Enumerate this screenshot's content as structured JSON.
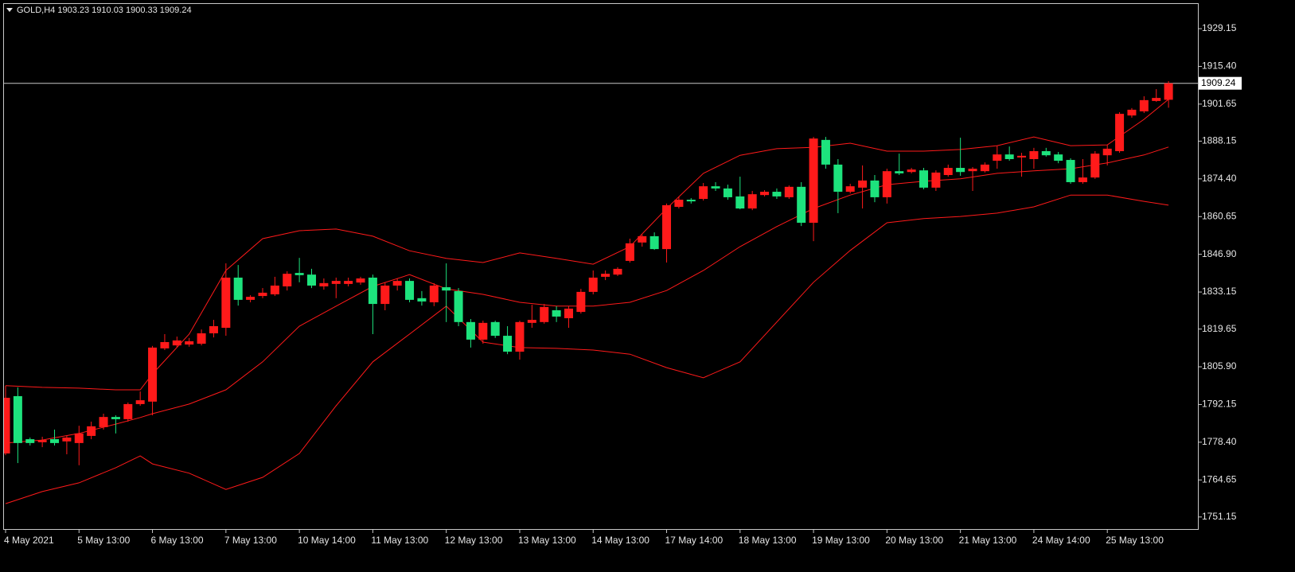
{
  "chart_data": {
    "type": "candlestick",
    "title": "GOLD,H4  1903.23 1910.03 1900.33 1909.24",
    "categories": [
      "4 May 2021",
      null,
      null,
      null,
      null,
      null,
      "5 May 13:00",
      null,
      null,
      null,
      null,
      null,
      "6 May 13:00",
      null,
      null,
      null,
      null,
      null,
      "7 May 13:00",
      null,
      null,
      null,
      null,
      null,
      "10 May 14:00",
      null,
      null,
      null,
      null,
      null,
      "11 May 13:00",
      null,
      null,
      null,
      null,
      null,
      "12 May 13:00",
      null,
      null,
      null,
      null,
      null,
      "13 May 13:00",
      null,
      null,
      null,
      null,
      null,
      "14 May 13:00",
      null,
      null,
      null,
      null,
      null,
      "17 May 14:00",
      null,
      null,
      null,
      null,
      null,
      "18 May 13:00",
      null,
      null,
      null,
      null,
      null,
      "19 May 13:00",
      null,
      null,
      null,
      null,
      null,
      "20 May 13:00",
      null,
      null,
      null,
      null,
      null,
      "21 May 13:00",
      null,
      null,
      null,
      null,
      null,
      "24 May 14:00",
      null,
      null,
      null,
      null,
      null,
      "25 May 13:00",
      null,
      null,
      null,
      null,
      null
    ],
    "open": [
      1774.3,
      1795.2,
      1779.5,
      1778.4,
      1779.5,
      1778.7,
      1778.1,
      1780.7,
      1783.9,
      1787.6,
      1786.8,
      1792.3,
      1793.2,
      1812.6,
      1813.7,
      1814.0,
      1814.3,
      1818.1,
      1820.1,
      1838.4,
      1830.3,
      1831.7,
      1832.3,
      1835.2,
      1840.1,
      1839.5,
      1835.2,
      1836.1,
      1836.1,
      1836.6,
      1838.4,
      1828.8,
      1835.5,
      1837.2,
      1830.9,
      1829.4,
      1834.9,
      1833.5,
      1822.2,
      1815.8,
      1822.2,
      1817.2,
      1811.4,
      1821.9,
      1822.2,
      1826.5,
      1823.6,
      1825.9,
      1833.2,
      1838.7,
      1839.5,
      1844.5,
      1851.2,
      1853.5,
      1848.8,
      1864.2,
      1866.8,
      1867.1,
      1871.7,
      1870.9,
      1868.0,
      1863.6,
      1868.5,
      1869.7,
      1867.7,
      1871.5,
      1858.4,
      1888.6,
      1879.6,
      1869.7,
      1871.2,
      1873.8,
      1867.7,
      1877.2,
      1876.9,
      1877.5,
      1871.2,
      1875.8,
      1878.4,
      1877.2,
      1877.2,
      1881.0,
      1883.3,
      1882.2,
      1881.6,
      1884.5,
      1883.3,
      1881.3,
      1873.2,
      1874.9,
      1883.0,
      1884.5,
      1897.5,
      1899.0,
      1902.8,
      1903.23
    ],
    "high": [
      1799.0,
      1798.4,
      1780.1,
      1780.4,
      1783.0,
      1780.7,
      1784.4,
      1785.9,
      1788.8,
      1788.2,
      1792.9,
      1796.9,
      1813.5,
      1817.8,
      1816.9,
      1816.4,
      1819.5,
      1823.0,
      1843.6,
      1843.0,
      1832.0,
      1834.6,
      1838.7,
      1840.7,
      1845.6,
      1841.6,
      1838.1,
      1838.4,
      1838.4,
      1838.7,
      1839.5,
      1836.6,
      1838.1,
      1838.1,
      1833.5,
      1836.4,
      1843.6,
      1834.6,
      1823.3,
      1822.7,
      1822.7,
      1820.7,
      1822.7,
      1828.5,
      1828.8,
      1828.0,
      1828.0,
      1834.3,
      1841.0,
      1841.0,
      1842.2,
      1852.6,
      1854.1,
      1854.9,
      1865.4,
      1868.0,
      1867.4,
      1872.9,
      1873.2,
      1872.3,
      1875.2,
      1870.0,
      1870.3,
      1870.9,
      1872.0,
      1873.2,
      1889.7,
      1889.7,
      1881.6,
      1872.6,
      1879.3,
      1875.8,
      1878.1,
      1883.6,
      1878.4,
      1878.4,
      1877.5,
      1879.6,
      1889.4,
      1878.7,
      1880.4,
      1886.5,
      1886.2,
      1883.9,
      1885.7,
      1885.7,
      1884.2,
      1881.9,
      1881.6,
      1884.5,
      1886.8,
      1898.7,
      1900.2,
      1904.5,
      1907.1,
      1910.03
    ],
    "low": [
      1773.7,
      1770.8,
      1777.2,
      1776.6,
      1777.2,
      1774.0,
      1770.0,
      1779.5,
      1783.0,
      1781.6,
      1785.9,
      1791.7,
      1788.2,
      1812.0,
      1812.9,
      1813.2,
      1813.7,
      1816.6,
      1817.2,
      1828.2,
      1829.4,
      1830.9,
      1831.7,
      1833.7,
      1836.7,
      1834.6,
      1834.0,
      1830.9,
      1835.2,
      1835.8,
      1817.8,
      1826.5,
      1833.7,
      1829.4,
      1828.2,
      1828.0,
      1822.2,
      1820.7,
      1812.9,
      1814.3,
      1816.4,
      1810.5,
      1808.5,
      1820.1,
      1821.6,
      1822.2,
      1820.1,
      1825.3,
      1832.3,
      1837.5,
      1839.0,
      1843.9,
      1849.7,
      1848.5,
      1843.9,
      1863.6,
      1865.4,
      1866.5,
      1870.0,
      1866.8,
      1863.3,
      1863.0,
      1868.0,
      1867.1,
      1867.1,
      1857.2,
      1851.7,
      1878.1,
      1861.9,
      1869.1,
      1863.6,
      1865.9,
      1865.4,
      1875.8,
      1876.4,
      1870.6,
      1870.0,
      1875.2,
      1875.5,
      1870.0,
      1876.7,
      1878.1,
      1881.0,
      1875.2,
      1878.1,
      1882.5,
      1880.1,
      1872.6,
      1872.6,
      1874.4,
      1879.3,
      1883.9,
      1896.7,
      1898.4,
      1902.5,
      1900.33
    ],
    "close": [
      1794.6,
      1778.1,
      1778.1,
      1779.2,
      1778.1,
      1780.1,
      1781.6,
      1784.2,
      1787.6,
      1786.8,
      1792.3,
      1793.7,
      1812.9,
      1814.9,
      1815.5,
      1815.2,
      1818.1,
      1820.7,
      1838.4,
      1830.3,
      1831.4,
      1832.9,
      1835.5,
      1839.8,
      1839.3,
      1835.5,
      1836.4,
      1837.2,
      1837.2,
      1838.1,
      1828.8,
      1835.5,
      1837.2,
      1830.3,
      1829.7,
      1835.5,
      1833.7,
      1822.2,
      1815.8,
      1821.9,
      1817.2,
      1811.4,
      1822.2,
      1823.0,
      1827.7,
      1824.2,
      1827.1,
      1833.2,
      1838.4,
      1839.8,
      1841.6,
      1850.9,
      1853.5,
      1848.8,
      1864.8,
      1866.8,
      1866.2,
      1871.7,
      1870.9,
      1867.7,
      1863.6,
      1868.8,
      1869.7,
      1868.0,
      1871.5,
      1858.4,
      1889.1,
      1879.6,
      1869.7,
      1871.7,
      1873.8,
      1867.7,
      1877.2,
      1876.4,
      1877.8,
      1871.2,
      1876.7,
      1878.4,
      1876.9,
      1878.1,
      1879.6,
      1883.3,
      1881.6,
      1882.8,
      1884.5,
      1883.0,
      1881.0,
      1873.2,
      1874.9,
      1883.6,
      1885.4,
      1898.1,
      1899.6,
      1903.1,
      1903.9,
      1909.24
    ],
    "up_color": "#ff1a1a",
    "down_color": "#1de37d",
    "bands": {
      "color": "#ff1a1a",
      "x": [
        0,
        3,
        6,
        9,
        11,
        12,
        15,
        18,
        21,
        24,
        27,
        30,
        33,
        36,
        39,
        42,
        45,
        48,
        51,
        54,
        57,
        60,
        63,
        66,
        69,
        72,
        75,
        78,
        81,
        84,
        87,
        90,
        93,
        95
      ],
      "upper": [
        1799.0,
        1798.4,
        1798.1,
        1797.5,
        1797.5,
        1803.3,
        1817.8,
        1841.0,
        1852.6,
        1855.5,
        1856.1,
        1853.5,
        1848.2,
        1845.4,
        1843.9,
        1847.4,
        1845.4,
        1843.3,
        1849.7,
        1863.6,
        1876.4,
        1883.0,
        1885.4,
        1885.9,
        1887.4,
        1884.5,
        1884.5,
        1885.1,
        1886.5,
        1889.7,
        1886.5,
        1886.8,
        1896.1,
        1903.4
      ],
      "middle": [
        1778.1,
        1779.2,
        1781.6,
        1785.0,
        1787.4,
        1788.8,
        1792.3,
        1797.5,
        1807.7,
        1820.7,
        1828.0,
        1835.2,
        1839.5,
        1834.3,
        1832.3,
        1829.4,
        1828.0,
        1828.0,
        1829.4,
        1833.7,
        1841.0,
        1849.7,
        1857.0,
        1863.6,
        1868.5,
        1872.3,
        1873.5,
        1874.4,
        1876.4,
        1877.3,
        1878.1,
        1880.2,
        1883.1,
        1886.0
      ],
      "lower": [
        1756.0,
        1760.4,
        1763.6,
        1769.1,
        1773.4,
        1770.5,
        1767.1,
        1761.2,
        1765.6,
        1774.3,
        1791.7,
        1807.7,
        1817.8,
        1828.0,
        1814.9,
        1812.9,
        1812.6,
        1812.0,
        1810.5,
        1805.6,
        1801.9,
        1807.7,
        1822.2,
        1836.7,
        1848.3,
        1858.4,
        1859.9,
        1860.7,
        1861.9,
        1864.2,
        1868.5,
        1868.5,
        1866.2,
        1864.8
      ]
    },
    "last_price": 1909.24,
    "ylim": [
      1746.75,
      1938.15
    ],
    "yticks": [
      1929.15,
      {
        "value": 1915.4,
        "label": "1915.40"
      },
      1901.65,
      1888.15,
      {
        "value": 1874.4,
        "label": "1874.40"
      },
      1860.65,
      {
        "value": 1846.9,
        "label": "1846.90"
      },
      1833.15,
      1819.65,
      {
        "value": 1805.9,
        "label": "1805.90"
      },
      1792.15,
      {
        "value": 1778.4,
        "label": "1778.40"
      },
      1764.65,
      1751.15
    ]
  }
}
